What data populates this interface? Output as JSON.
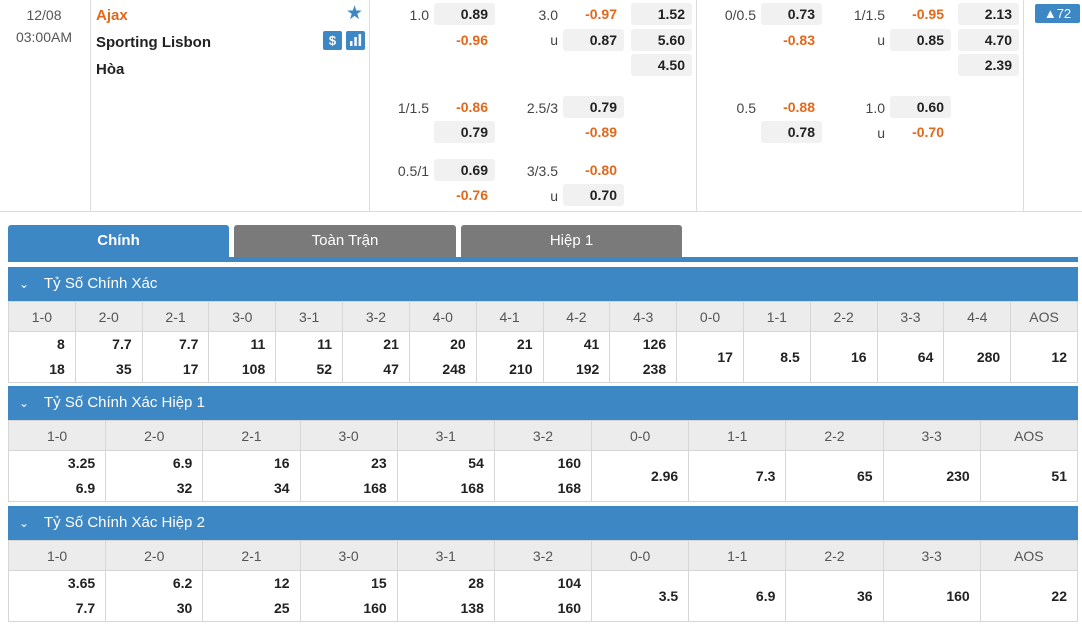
{
  "match": {
    "date": "12/08",
    "time": "03:00AM",
    "home": "Ajax",
    "away": "Sporting Lisbon",
    "draw": "Hòa",
    "dollar_icon": "$",
    "more_count": "▲72"
  },
  "odds": {
    "r1": {
      "hdp": "1.0",
      "hdp_home": "0.89",
      "hdp_away": "-0.96",
      "ou": "3.0",
      "ou_over": "-0.97",
      "ou_u": "u",
      "ou_under": "0.87",
      "x1": "1.52",
      "x2": "5.60",
      "x3": "4.50",
      "h1_hdp": "0/0.5",
      "h1_home": "0.73",
      "h1_away": "-0.83",
      "h1_ou": "1/1.5",
      "h1_over": "-0.95",
      "h1_u": "u",
      "h1_under": "0.85",
      "h1_x1": "2.13",
      "h1_x2": "4.70",
      "h1_x3": "2.39"
    },
    "r2": {
      "hdp": "1/1.5",
      "hdp_home": "-0.86",
      "hdp_away": "0.79",
      "ou": "2.5/3",
      "ou_over": "0.79",
      "ou_under": "-0.89",
      "h1_hdp": "0.5",
      "h1_home": "-0.88",
      "h1_away": "0.78",
      "h1_ou": "1.0",
      "h1_over": "0.60",
      "h1_u": "u",
      "h1_under": "-0.70"
    },
    "r3": {
      "hdp": "0.5/1",
      "hdp_home": "0.69",
      "hdp_away": "-0.76",
      "ou": "3/3.5",
      "ou_over": "-0.80",
      "ou_u": "u",
      "ou_under": "0.70"
    }
  },
  "tabs": {
    "main": "Chính",
    "full": "Toàn Trận",
    "half": "Hiệp 1"
  },
  "sections": {
    "s1": {
      "title": "Tỷ Số Chính Xác",
      "headers": [
        "1-0",
        "2-0",
        "2-1",
        "3-0",
        "3-1",
        "3-2",
        "4-0",
        "4-1",
        "4-2",
        "4-3",
        "0-0",
        "1-1",
        "2-2",
        "3-3",
        "4-4",
        "AOS"
      ],
      "row1": [
        "8",
        "7.7",
        "7.7",
        "11",
        "11",
        "21",
        "20",
        "21",
        "41",
        "126"
      ],
      "row2": [
        "18",
        "35",
        "17",
        "108",
        "52",
        "47",
        "248",
        "210",
        "192",
        "238"
      ],
      "single": [
        "17",
        "8.5",
        "16",
        "64",
        "280",
        "12"
      ]
    },
    "s2": {
      "title": "Tỷ Số Chính Xác Hiệp 1",
      "headers": [
        "1-0",
        "2-0",
        "2-1",
        "3-0",
        "3-1",
        "3-2",
        "0-0",
        "1-1",
        "2-2",
        "3-3",
        "AOS"
      ],
      "row1": [
        "3.25",
        "6.9",
        "16",
        "23",
        "54",
        "160"
      ],
      "row2": [
        "6.9",
        "32",
        "34",
        "168",
        "168",
        "168"
      ],
      "single": [
        "2.96",
        "7.3",
        "65",
        "230",
        "51"
      ]
    },
    "s3": {
      "title": "Tỷ Số Chính Xác Hiệp 2",
      "headers": [
        "1-0",
        "2-0",
        "2-1",
        "3-0",
        "3-1",
        "3-2",
        "0-0",
        "1-1",
        "2-2",
        "3-3",
        "AOS"
      ],
      "row1": [
        "3.65",
        "6.2",
        "12",
        "15",
        "28",
        "104"
      ],
      "row2": [
        "7.7",
        "30",
        "25",
        "160",
        "138",
        "160"
      ],
      "single": [
        "3.5",
        "6.9",
        "36",
        "160",
        "22"
      ]
    }
  },
  "icons": {
    "star": "star-icon",
    "dollar": "dollar-icon",
    "chart": "bar-chart-icon",
    "chevron": "chevron-down-icon"
  },
  "colors": {
    "accent": "#3d87c5",
    "home_team": "#e2681b",
    "negative_odds": "#e2681b",
    "tab_inactive": "#7a7a7a"
  }
}
